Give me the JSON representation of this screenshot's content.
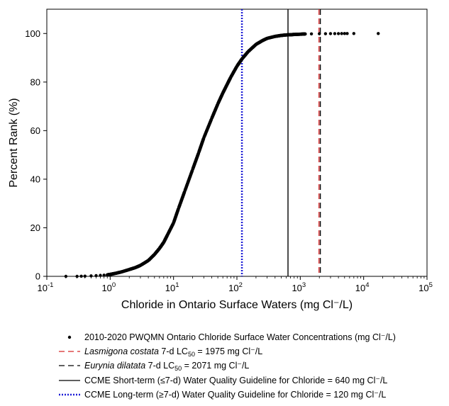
{
  "chart_data": {
    "type": "scatter",
    "xlabel": "Chloride in Ontario Surface Waters (mg Cl⁻/L)",
    "ylabel": "Percent Rank (%)",
    "xscale": "log",
    "xlim": [
      0.1,
      100000
    ],
    "ylim": [
      0,
      110
    ],
    "x_ticks": [
      {
        "value": 0.1,
        "base": "10",
        "exp": "-1"
      },
      {
        "value": 1,
        "base": "10",
        "exp": "0"
      },
      {
        "value": 10,
        "base": "10",
        "exp": "1"
      },
      {
        "value": 100,
        "base": "10",
        "exp": "2"
      },
      {
        "value": 1000,
        "base": "10",
        "exp": "3"
      },
      {
        "value": 10000,
        "base": "10",
        "exp": "4"
      },
      {
        "value": 100000,
        "base": "10",
        "exp": "5"
      }
    ],
    "y_ticks": [
      0,
      20,
      40,
      60,
      80,
      100
    ],
    "grid": false,
    "legend_position": "bottom",
    "series": [
      {
        "name": "2010-2020 PWQMN Ontario Chloride Surface Water Concentrations (mg Cl⁻/L)",
        "kind": "points",
        "color": "#000000",
        "x": [
          0.2,
          0.3,
          0.35,
          0.4,
          0.5,
          0.6,
          0.7,
          0.8,
          0.9,
          1.0,
          1.2,
          1.5,
          2,
          2.5,
          3,
          4,
          5,
          6,
          7,
          8,
          10,
          12,
          15,
          20,
          25,
          30,
          40,
          50,
          60,
          70,
          80,
          100,
          120,
          150,
          200,
          250,
          300,
          400,
          500,
          600,
          700,
          800,
          1000,
          1200,
          1500,
          2000,
          2500,
          3000,
          3500,
          4000,
          4500,
          5000,
          5500,
          7000,
          17000
        ],
        "y": [
          0,
          0,
          0.05,
          0.1,
          0.2,
          0.3,
          0.4,
          0.5,
          0.6,
          0.8,
          1.2,
          1.8,
          2.8,
          3.6,
          4.5,
          6.5,
          9,
          11.5,
          14,
          17,
          22,
          28,
          35,
          44,
          51,
          57,
          65,
          71,
          75.5,
          79,
          82,
          86.5,
          89.5,
          92.5,
          95.5,
          97,
          98,
          98.8,
          99.2,
          99.4,
          99.5,
          99.6,
          99.7,
          99.8,
          99.85,
          99.9,
          99.92,
          99.94,
          99.95,
          99.96,
          99.97,
          99.98,
          99.985,
          99.99,
          100
        ]
      },
      {
        "name": "Lasmigona costata 7-d LC50 = 1975 mg Cl⁻/L",
        "name_italic": "Lasmigona costata",
        "name_rest": " 7-d LC",
        "name_sub": "50",
        "name_after": " = 1975 mg Cl⁻/L",
        "kind": "vline",
        "value": 1975,
        "color": "#d62728",
        "dash": "8 5"
      },
      {
        "name": "Eurynia dilatata 7-d LC50 = 2071 mg Cl⁻/L",
        "name_italic": "Eurynia dilatata",
        "name_rest": " 7-d LC",
        "name_sub": "50",
        "name_after": " = 2071 mg Cl⁻/L",
        "kind": "vline",
        "value": 2071,
        "color": "#000000",
        "dash": "8 5"
      },
      {
        "name": "CCME Short-term (≤7-d) Water Quality Guideline for Chloride = 640 mg Cl⁻/L",
        "kind": "vline",
        "value": 640,
        "color": "#000000",
        "dash": ""
      },
      {
        "name": "CCME Long-term (≥7-d) Water Quality Guideline for Chloride = 120 mg Cl⁻/L",
        "kind": "vline",
        "value": 120,
        "color": "#1f1fd6",
        "dash": "2 2"
      }
    ]
  }
}
